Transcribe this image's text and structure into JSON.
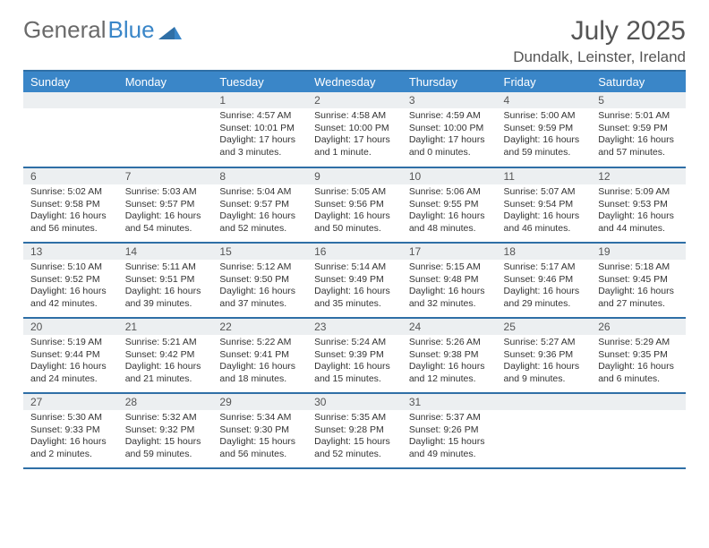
{
  "logo": {
    "part1": "General",
    "part2": "Blue"
  },
  "title": "July 2025",
  "location": "Dundalk, Leinster, Ireland",
  "colors": {
    "header_bg": "#3a86c8",
    "rule": "#2f6fa6",
    "daynum_bg": "#eceff1",
    "text_muted": "#555",
    "text_body": "#333"
  },
  "layout": {
    "start_day_index": 2,
    "days_in_month": 31
  },
  "weekdays": [
    "Sunday",
    "Monday",
    "Tuesday",
    "Wednesday",
    "Thursday",
    "Friday",
    "Saturday"
  ],
  "days": [
    {
      "n": 1,
      "sunrise": "4:57 AM",
      "sunset": "10:01 PM",
      "daylight": "17 hours and 3 minutes."
    },
    {
      "n": 2,
      "sunrise": "4:58 AM",
      "sunset": "10:00 PM",
      "daylight": "17 hours and 1 minute."
    },
    {
      "n": 3,
      "sunrise": "4:59 AM",
      "sunset": "10:00 PM",
      "daylight": "17 hours and 0 minutes."
    },
    {
      "n": 4,
      "sunrise": "5:00 AM",
      "sunset": "9:59 PM",
      "daylight": "16 hours and 59 minutes."
    },
    {
      "n": 5,
      "sunrise": "5:01 AM",
      "sunset": "9:59 PM",
      "daylight": "16 hours and 57 minutes."
    },
    {
      "n": 6,
      "sunrise": "5:02 AM",
      "sunset": "9:58 PM",
      "daylight": "16 hours and 56 minutes."
    },
    {
      "n": 7,
      "sunrise": "5:03 AM",
      "sunset": "9:57 PM",
      "daylight": "16 hours and 54 minutes."
    },
    {
      "n": 8,
      "sunrise": "5:04 AM",
      "sunset": "9:57 PM",
      "daylight": "16 hours and 52 minutes."
    },
    {
      "n": 9,
      "sunrise": "5:05 AM",
      "sunset": "9:56 PM",
      "daylight": "16 hours and 50 minutes."
    },
    {
      "n": 10,
      "sunrise": "5:06 AM",
      "sunset": "9:55 PM",
      "daylight": "16 hours and 48 minutes."
    },
    {
      "n": 11,
      "sunrise": "5:07 AM",
      "sunset": "9:54 PM",
      "daylight": "16 hours and 46 minutes."
    },
    {
      "n": 12,
      "sunrise": "5:09 AM",
      "sunset": "9:53 PM",
      "daylight": "16 hours and 44 minutes."
    },
    {
      "n": 13,
      "sunrise": "5:10 AM",
      "sunset": "9:52 PM",
      "daylight": "16 hours and 42 minutes."
    },
    {
      "n": 14,
      "sunrise": "5:11 AM",
      "sunset": "9:51 PM",
      "daylight": "16 hours and 39 minutes."
    },
    {
      "n": 15,
      "sunrise": "5:12 AM",
      "sunset": "9:50 PM",
      "daylight": "16 hours and 37 minutes."
    },
    {
      "n": 16,
      "sunrise": "5:14 AM",
      "sunset": "9:49 PM",
      "daylight": "16 hours and 35 minutes."
    },
    {
      "n": 17,
      "sunrise": "5:15 AM",
      "sunset": "9:48 PM",
      "daylight": "16 hours and 32 minutes."
    },
    {
      "n": 18,
      "sunrise": "5:17 AM",
      "sunset": "9:46 PM",
      "daylight": "16 hours and 29 minutes."
    },
    {
      "n": 19,
      "sunrise": "5:18 AM",
      "sunset": "9:45 PM",
      "daylight": "16 hours and 27 minutes."
    },
    {
      "n": 20,
      "sunrise": "5:19 AM",
      "sunset": "9:44 PM",
      "daylight": "16 hours and 24 minutes."
    },
    {
      "n": 21,
      "sunrise": "5:21 AM",
      "sunset": "9:42 PM",
      "daylight": "16 hours and 21 minutes."
    },
    {
      "n": 22,
      "sunrise": "5:22 AM",
      "sunset": "9:41 PM",
      "daylight": "16 hours and 18 minutes."
    },
    {
      "n": 23,
      "sunrise": "5:24 AM",
      "sunset": "9:39 PM",
      "daylight": "16 hours and 15 minutes."
    },
    {
      "n": 24,
      "sunrise": "5:26 AM",
      "sunset": "9:38 PM",
      "daylight": "16 hours and 12 minutes."
    },
    {
      "n": 25,
      "sunrise": "5:27 AM",
      "sunset": "9:36 PM",
      "daylight": "16 hours and 9 minutes."
    },
    {
      "n": 26,
      "sunrise": "5:29 AM",
      "sunset": "9:35 PM",
      "daylight": "16 hours and 6 minutes."
    },
    {
      "n": 27,
      "sunrise": "5:30 AM",
      "sunset": "9:33 PM",
      "daylight": "16 hours and 2 minutes."
    },
    {
      "n": 28,
      "sunrise": "5:32 AM",
      "sunset": "9:32 PM",
      "daylight": "15 hours and 59 minutes."
    },
    {
      "n": 29,
      "sunrise": "5:34 AM",
      "sunset": "9:30 PM",
      "daylight": "15 hours and 56 minutes."
    },
    {
      "n": 30,
      "sunrise": "5:35 AM",
      "sunset": "9:28 PM",
      "daylight": "15 hours and 52 minutes."
    },
    {
      "n": 31,
      "sunrise": "5:37 AM",
      "sunset": "9:26 PM",
      "daylight": "15 hours and 49 minutes."
    }
  ],
  "labels": {
    "sunrise": "Sunrise: ",
    "sunset": "Sunset: ",
    "daylight": "Daylight: "
  }
}
